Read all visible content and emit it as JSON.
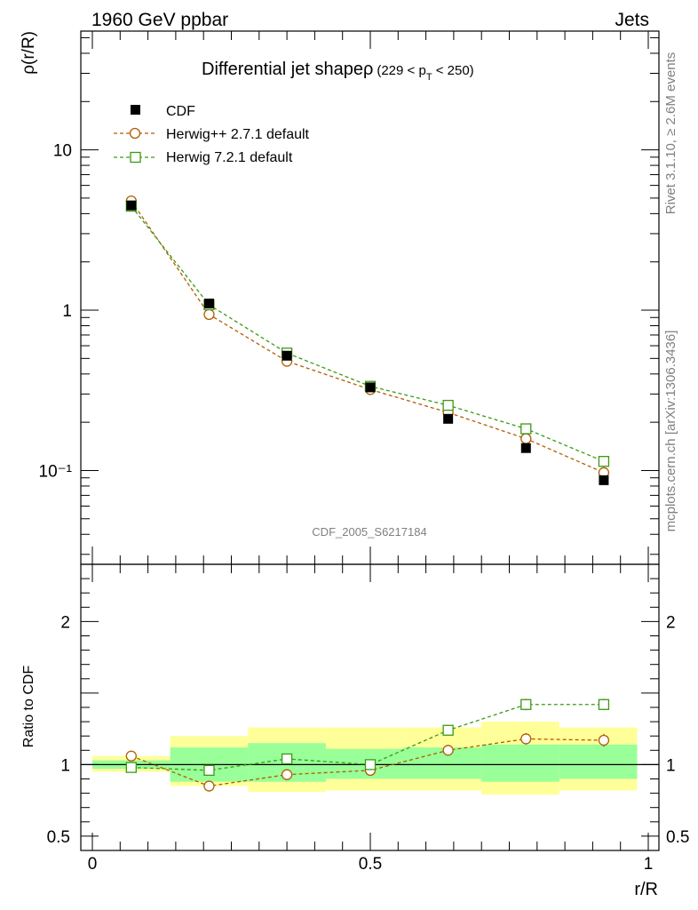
{
  "header": {
    "left": "1960 GeV ppbar",
    "right": "Jets"
  },
  "side_labels": {
    "rivet": "Rivet 3.1.10, ≥ 2.6M events",
    "mcplots": "mcplots.cern.ch [arXiv:1306.3436]"
  },
  "watermark": "CDF_2005_S6217184",
  "chart_data": [
    {
      "type": "scatter",
      "title": "Differential jet shape ρ (229 < p_T < 250)",
      "title_main": "Differential jet shapeρ",
      "title_range_a": "(229 < p",
      "title_sub": "T",
      "title_range_b": " < 250)",
      "ylabel": "ρ(r/R)",
      "yscale": "log",
      "ylim": [
        0.026,
        55
      ],
      "y_tick_labels": [
        "10⁻¹",
        "1",
        "10"
      ],
      "x": [
        0.07,
        0.21,
        0.35,
        0.5,
        0.64,
        0.78,
        0.92
      ],
      "series": [
        {
          "name": "CDF",
          "color": "#000000",
          "marker": "filled-square",
          "values": [
            4.5,
            1.1,
            0.52,
            0.33,
            0.21,
            0.138,
            0.087
          ]
        },
        {
          "name": "Herwig++ 2.7.1 default",
          "color": "#b35c00",
          "marker": "open-circle",
          "values": [
            4.8,
            0.94,
            0.48,
            0.32,
            0.23,
            0.158,
            0.097
          ]
        },
        {
          "name": "Herwig 7.2.1 default",
          "color": "#3a9a14",
          "marker": "open-square",
          "values": [
            4.45,
            1.08,
            0.54,
            0.335,
            0.255,
            0.182,
            0.114
          ]
        }
      ]
    },
    {
      "type": "scatter",
      "ylabel": "Ratio to CDF",
      "xlabel": "r/R",
      "xlim": [
        0,
        1
      ],
      "ylim": [
        0.4,
        2.4
      ],
      "x_tick_labels": [
        "0",
        "0.5",
        "1"
      ],
      "y_tick_labels": [
        "0.5",
        "1",
        "2"
      ],
      "x_edges": [
        0,
        0.14,
        0.28,
        0.42,
        0.56,
        0.7,
        0.84,
        0.98
      ],
      "green_band": [
        [
          0.97,
          1.03
        ],
        [
          0.88,
          1.12
        ],
        [
          0.88,
          1.15
        ],
        [
          0.9,
          1.11
        ],
        [
          0.9,
          1.12
        ],
        [
          0.88,
          1.14
        ],
        [
          0.9,
          1.14
        ]
      ],
      "yellow_band": [
        [
          0.95,
          1.06
        ],
        [
          0.85,
          1.2
        ],
        [
          0.81,
          1.26
        ],
        [
          0.82,
          1.26
        ],
        [
          0.82,
          1.26
        ],
        [
          0.79,
          1.3
        ],
        [
          0.82,
          1.26
        ]
      ],
      "series": [
        {
          "name": "Herwig++ 2.7.1 default",
          "color": "#b35c00",
          "marker": "open-circle",
          "values": [
            1.06,
            0.85,
            0.93,
            0.96,
            1.1,
            1.18,
            1.17
          ],
          "errors": [
            0.015,
            0.015,
            0.02,
            0.025,
            0.03,
            0.04,
            0.045
          ]
        },
        {
          "name": "Herwig 7.2.1 default",
          "color": "#3a9a14",
          "marker": "open-square",
          "values": [
            0.98,
            0.96,
            1.04,
            1.0,
            1.24,
            1.42,
            1.42
          ],
          "errors": [
            0.015,
            0.015,
            0.02,
            0.02,
            0.03,
            0.04,
            0.04
          ]
        }
      ]
    }
  ]
}
